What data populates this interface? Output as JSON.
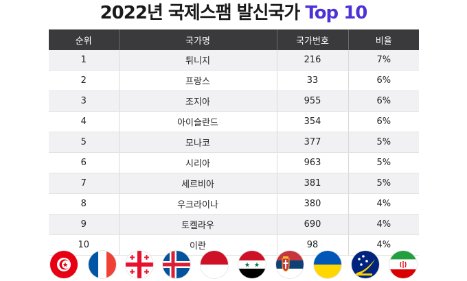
{
  "title": {
    "main": "2022년 국제스팸 발신국가",
    "accent": "Top 10"
  },
  "table": {
    "headers": [
      "순위",
      "국가명",
      "국가번호",
      "비율"
    ],
    "rows": [
      {
        "rank": "1",
        "country": "튀니지",
        "code": "216",
        "ratio": "7%"
      },
      {
        "rank": "2",
        "country": "프랑스",
        "code": "33",
        "ratio": "6%"
      },
      {
        "rank": "3",
        "country": "조지아",
        "code": "955",
        "ratio": "6%"
      },
      {
        "rank": "4",
        "country": "아이슬란드",
        "code": "354",
        "ratio": "6%"
      },
      {
        "rank": "5",
        "country": "모나코",
        "code": "377",
        "ratio": "5%"
      },
      {
        "rank": "6",
        "country": "시리아",
        "code": "963",
        "ratio": "5%"
      },
      {
        "rank": "7",
        "country": "세르비아",
        "code": "381",
        "ratio": "5%"
      },
      {
        "rank": "8",
        "country": "우크라이나",
        "code": "380",
        "ratio": "4%"
      },
      {
        "rank": "9",
        "country": "토켈라우",
        "code": "690",
        "ratio": "4%"
      },
      {
        "rank": "10",
        "country": "이란",
        "code": "98",
        "ratio": "4%"
      }
    ]
  },
  "flags": [
    {
      "name": "tunisia-flag-icon"
    },
    {
      "name": "france-flag-icon"
    },
    {
      "name": "georgia-flag-icon"
    },
    {
      "name": "iceland-flag-icon"
    },
    {
      "name": "monaco-flag-icon"
    },
    {
      "name": "syria-flag-icon"
    },
    {
      "name": "serbia-flag-icon"
    },
    {
      "name": "ukraine-flag-icon"
    },
    {
      "name": "tokelau-flag-icon"
    },
    {
      "name": "iran-flag-icon"
    }
  ],
  "colors": {
    "header_bg": "#3a3a3d",
    "row_alt": "#f1f1f3",
    "accent": "#4b33d6"
  }
}
